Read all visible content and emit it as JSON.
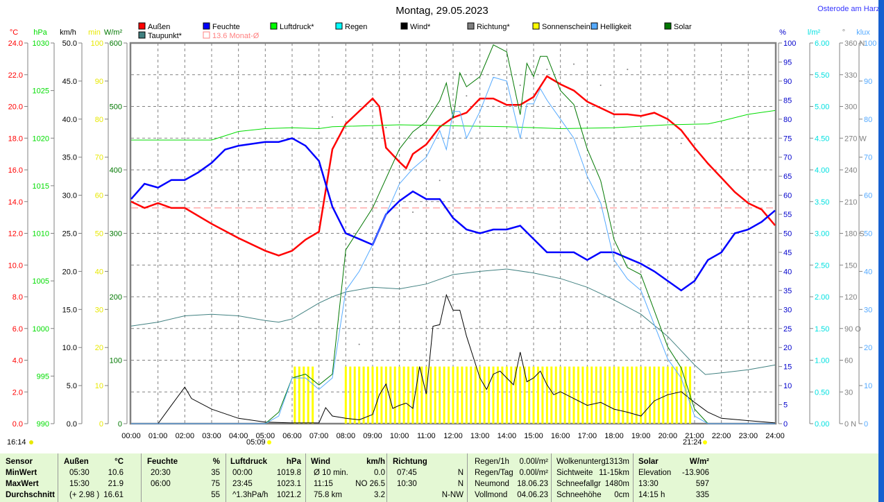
{
  "header": {
    "title": "Montag, 29.05.2023",
    "location": "Osterode am Harz"
  },
  "legend": [
    {
      "label": "Außen",
      "color": "#ff0000"
    },
    {
      "label": "Feuchte",
      "color": "#0000ff"
    },
    {
      "label": "Luftdruck*",
      "color": "#00ff00"
    },
    {
      "label": "Regen",
      "color": "#00ffff"
    },
    {
      "label": "Wind*",
      "color": "#000000"
    },
    {
      "label": "Richtung*",
      "color": "#808080"
    },
    {
      "label": "Sonnenschein",
      "color": "#ffff00"
    },
    {
      "label": "Helligkeit",
      "color": "#55aaff"
    },
    {
      "label": "Solar",
      "color": "#007700"
    },
    {
      "label": "Taupunkt*",
      "color": "#408080"
    },
    {
      "label": "13.6 Monat-Ø",
      "color": "#ff8080"
    }
  ],
  "sun": {
    "info": "16:14",
    "sunrise": "05:09",
    "sunset": "21:24"
  },
  "chart_data": {
    "type": "line",
    "title": "Montag, 29.05.2023",
    "xlabel": "Uhrzeit",
    "xlim": [
      0,
      24
    ],
    "xticks": [
      "00:00",
      "01:00",
      "02:00",
      "03:00",
      "04:00",
      "05:00",
      "06:00",
      "07:00",
      "08:00",
      "09:00",
      "10:00",
      "11:00",
      "12:00",
      "13:00",
      "14:00",
      "15:00",
      "16:00",
      "17:00",
      "18:00",
      "19:00",
      "20:00",
      "21:00",
      "22:00",
      "23:00",
      "24:00"
    ],
    "axes": [
      {
        "unit": "°C",
        "color": "#ff0000",
        "range": [
          0,
          24
        ],
        "ticks": [
          "0.0",
          "2.0",
          "4.0",
          "6.0",
          "8.0",
          "10.0",
          "12.0",
          "14.0",
          "16.0",
          "18.0",
          "20.0",
          "22.0",
          "24.0"
        ]
      },
      {
        "unit": "hPa",
        "color": "#00dd00",
        "range": [
          990,
          1030
        ],
        "ticks": [
          "990",
          "995",
          "1000",
          "1005",
          "1010",
          "1015",
          "1020",
          "1025",
          "1030"
        ]
      },
      {
        "unit": "km/h",
        "color": "#000000",
        "range": [
          0,
          50
        ],
        "ticks": [
          "0.0",
          "5.0",
          "10.0",
          "15.0",
          "20.0",
          "25.0",
          "30.0",
          "35.0",
          "40.0",
          "45.0",
          "50.0"
        ]
      },
      {
        "unit": "min",
        "color": "#e8e800",
        "range": [
          0,
          100
        ],
        "ticks": [
          "0",
          "10",
          "20",
          "30",
          "40",
          "50",
          "60",
          "70",
          "80",
          "90",
          "100"
        ]
      },
      {
        "unit": "W/m²",
        "color": "#007700",
        "range": [
          0,
          600
        ],
        "ticks": [
          "0",
          "100",
          "200",
          "300",
          "400",
          "500",
          "600"
        ]
      },
      {
        "unit": "%",
        "color": "#0000cc",
        "range": [
          0,
          100
        ],
        "ticks": [
          "0",
          "5",
          "10",
          "15",
          "20",
          "25",
          "30",
          "35",
          "40",
          "45",
          "50",
          "55",
          "60",
          "65",
          "70",
          "75",
          "80",
          "85",
          "90",
          "95",
          "100"
        ]
      },
      {
        "unit": "l/m²",
        "color": "#00e0e0",
        "range": [
          0,
          6
        ],
        "ticks": [
          "0.00",
          "0.50",
          "1.00",
          "1.50",
          "2.00",
          "2.50",
          "3.00",
          "3.50",
          "4.00",
          "4.50",
          "5.00",
          "5.50",
          "6.00"
        ]
      },
      {
        "unit": "°",
        "color": "#808080",
        "range": [
          0,
          360
        ],
        "ticks": [
          "0 N",
          "30",
          "60",
          "90 O",
          "120",
          "150",
          "180 S",
          "210",
          "240",
          "270 W",
          "300",
          "330",
          "360 N"
        ]
      },
      {
        "unit": "klux",
        "color": "#55aaff",
        "range": [
          0,
          100
        ],
        "ticks": [
          "0",
          "10",
          "20",
          "30",
          "40",
          "50",
          "60",
          "70",
          "80",
          "90",
          "100"
        ]
      }
    ],
    "series": [
      {
        "name": "Außen",
        "axis": 0,
        "color": "#ff0000",
        "width": 2.5,
        "x": [
          0,
          0.5,
          1,
          1.5,
          2,
          3,
          4,
          5,
          5.5,
          6,
          6.5,
          7,
          7.5,
          8,
          8.5,
          9,
          9.25,
          9.5,
          10,
          10.25,
          10.5,
          11,
          11.5,
          12,
          12.5,
          13,
          13.5,
          14,
          14.5,
          15,
          15.5,
          16,
          16.5,
          17,
          17.5,
          18,
          18.5,
          19,
          19.5,
          20,
          20.5,
          21,
          21.5,
          22,
          22.5,
          23,
          23.5,
          24
        ],
        "y": [
          14.0,
          13.6,
          13.9,
          13.6,
          13.6,
          12.6,
          11.7,
          10.9,
          10.6,
          10.9,
          11.6,
          12.1,
          17.3,
          18.9,
          19.7,
          20.5,
          20.0,
          17.4,
          16.5,
          16.1,
          17.0,
          17.6,
          18.7,
          19.3,
          19.6,
          20.5,
          20.5,
          20.1,
          20.1,
          20.6,
          21.9,
          21.4,
          21.0,
          20.3,
          19.9,
          19.5,
          19.5,
          19.4,
          19.6,
          19.2,
          18.5,
          17.4,
          16.4,
          15.5,
          14.6,
          13.9,
          13.5,
          12.5
        ]
      },
      {
        "name": "Feuchte",
        "axis": 5,
        "color": "#0000ff",
        "width": 2.5,
        "x": [
          0,
          0.5,
          1,
          1.5,
          2,
          2.5,
          3,
          3.5,
          4,
          5,
          5.5,
          6,
          6.5,
          7,
          7.5,
          8,
          8.5,
          9,
          9.5,
          10,
          10.5,
          11,
          11.5,
          12,
          12.5,
          13,
          13.5,
          14,
          14.5,
          15,
          15.5,
          16,
          16.5,
          17,
          17.5,
          18,
          18.5,
          19,
          19.5,
          20,
          20.5,
          21,
          21.5,
          22,
          22.5,
          23,
          23.5,
          24
        ],
        "y": [
          59,
          63,
          62,
          64,
          64,
          66,
          68.5,
          72,
          73,
          74,
          74,
          75,
          73,
          69,
          57,
          50,
          48.5,
          47,
          55,
          58.5,
          61,
          59,
          59,
          54,
          51,
          50,
          51,
          51,
          52,
          48.5,
          45,
          45,
          45,
          43,
          45,
          45,
          43.5,
          42,
          40,
          37.5,
          35,
          37.5,
          43,
          45,
          50,
          51,
          53,
          56
        ]
      },
      {
        "name": "Luftdruck*",
        "axis": 1,
        "color": "#00dd00",
        "width": 1,
        "x": [
          0,
          3,
          4,
          5,
          6,
          7,
          7.5,
          10,
          14,
          16,
          18,
          20,
          21.5,
          22,
          23,
          24
        ],
        "y": [
          1019.8,
          1019.8,
          1020.7,
          1021.0,
          1021.1,
          1021.0,
          1021.2,
          1021.4,
          1021.2,
          1021.0,
          1021.1,
          1021.4,
          1021.5,
          1021.8,
          1022.5,
          1022.9
        ]
      },
      {
        "name": "Taupunkt*",
        "axis": 0,
        "color": "#408080",
        "width": 1,
        "x": [
          0,
          1,
          2,
          3,
          4,
          5,
          5.5,
          6,
          7,
          7.5,
          8,
          9,
          10,
          11,
          12,
          13,
          14,
          15,
          16,
          17,
          18,
          19,
          19.5,
          20,
          20.5,
          21,
          21.4,
          22,
          23,
          24
        ],
        "y": [
          6.15,
          6.4,
          6.8,
          6.9,
          6.8,
          6.5,
          6.4,
          6.6,
          7.6,
          8.0,
          8.3,
          8.6,
          8.5,
          8.8,
          9.4,
          9.6,
          9.75,
          9.5,
          9.15,
          8.6,
          7.8,
          6.9,
          6.2,
          5.5,
          4.6,
          3.7,
          3.1,
          3.2,
          3.4,
          3.7
        ]
      },
      {
        "name": "Wind*",
        "axis": 2,
        "color": "#000000",
        "width": 1,
        "x": [
          0,
          1,
          1.5,
          2,
          2.25,
          3,
          4,
          5,
          6,
          7,
          7.25,
          7.5,
          8,
          8.5,
          9,
          9.25,
          9.5,
          9.75,
          10,
          10.25,
          10.5,
          10.75,
          11,
          11.25,
          11.5,
          11.75,
          12,
          12.25,
          12.5,
          13,
          13.25,
          13.5,
          13.75,
          14,
          14.25,
          14.5,
          14.75,
          15,
          15.25,
          15.5,
          15.75,
          16,
          16.5,
          17,
          17.5,
          18,
          18.5,
          19,
          19.5,
          20,
          20.5,
          21,
          21.5,
          22,
          23,
          24
        ],
        "y": [
          0,
          0,
          2.4,
          4.8,
          3.3,
          1.9,
          0.7,
          0.2,
          0.1,
          0.1,
          2.1,
          1.0,
          0.7,
          0.5,
          1.2,
          3.8,
          5.2,
          2.0,
          2.4,
          2.7,
          2.0,
          7.5,
          3.9,
          12.8,
          13.0,
          16.9,
          14.9,
          14.9,
          11.5,
          6.0,
          4.5,
          6.5,
          6.9,
          6.0,
          5.1,
          9.4,
          5.5,
          6.0,
          6.9,
          5.1,
          3.8,
          4.2,
          3.3,
          2.4,
          2.8,
          1.9,
          1.5,
          1.0,
          3.0,
          3.8,
          4.2,
          2.8,
          1.5,
          0.7,
          0.4,
          0.1
        ]
      },
      {
        "name": "Solar",
        "axis": 4,
        "color": "#007700",
        "width": 1,
        "x": [
          0,
          5,
          5.5,
          6,
          6.5,
          7,
          7.5,
          8,
          8.5,
          9,
          10,
          10.5,
          11,
          11.5,
          11.75,
          12,
          12.25,
          12.5,
          13,
          13.5,
          14,
          14.5,
          14.75,
          15,
          15.25,
          15.5,
          16,
          16.5,
          17,
          17.5,
          18,
          18.5,
          19,
          20,
          20.5,
          21,
          21.5,
          24
        ],
        "y": [
          0,
          0,
          18,
          72,
          78,
          61,
          78,
          274,
          307,
          340,
          433,
          460,
          476,
          509,
          537,
          481,
          553,
          531,
          547,
          597,
          586,
          487,
          568,
          547,
          579,
          579,
          525,
          503,
          433,
          383,
          290,
          246,
          235,
          121,
          88,
          23,
          0,
          0
        ]
      },
      {
        "name": "Helligkeit",
        "axis": 8,
        "color": "#55aaff",
        "width": 1,
        "x": [
          0,
          5,
          5.5,
          6,
          6.5,
          7,
          7.5,
          8,
          8.5,
          9,
          10,
          10.5,
          11,
          11.5,
          11.75,
          12,
          12.25,
          12.5,
          13,
          13.5,
          14,
          14.5,
          14.75,
          15,
          15.25,
          15.5,
          16,
          16.5,
          17,
          17.5,
          18,
          18.5,
          19,
          20,
          20.5,
          21,
          21.5,
          24
        ],
        "y": [
          0,
          0,
          2,
          12,
          12,
          9,
          12,
          35,
          40,
          47,
          63,
          67,
          70,
          77,
          72,
          82,
          82,
          75,
          82,
          91,
          90,
          75,
          84,
          84,
          88,
          85,
          80,
          75,
          65,
          58,
          43,
          38,
          35,
          17,
          12,
          2,
          0,
          0
        ]
      }
    ],
    "sunshine_minutes": {
      "axis": 3,
      "color": "#ffff00",
      "value": 15,
      "ranges": [
        [
          6.1,
          6.9
        ],
        [
          8.0,
          20.9
        ]
      ]
    },
    "richtung_points": {
      "axis": 7,
      "color": "#808080",
      "x": [
        6.5,
        7.5,
        8.5,
        9.5,
        10.5,
        11.5,
        12.5,
        13.5,
        14.5,
        15.5,
        16.5,
        17.5,
        18.5,
        19.5,
        20.5,
        22.2
      ],
      "y": [
        330,
        290,
        75,
        280,
        200,
        230,
        310,
        300,
        320,
        335,
        340,
        320,
        335,
        300,
        265,
        325
      ]
    },
    "reference_line": {
      "label": "13.6 Monat-Ø",
      "axis": 0,
      "value": 13.6,
      "color": "#ff8080"
    }
  },
  "table": {
    "headers": [
      "Sensor",
      "Außen",
      "°C",
      "Feuchte",
      "%",
      "Luftdruck",
      "hPa",
      "Wind",
      "km/h",
      "Richtung"
    ],
    "rows": [
      {
        "label": "MinWert",
        "a_t": "05:30",
        "a_v": "10.6",
        "f_t": "20:30",
        "f_v": "35",
        "l_t": "00:00",
        "l_v": "1019.8",
        "w_t": "Ø 10 min.",
        "w_v": "0.0",
        "r_t": "07:45",
        "r_v": "N"
      },
      {
        "label": "MaxWert",
        "a_t": "15:30",
        "a_v": "21.9",
        "f_t": "06:00",
        "f_v": "75",
        "l_t": "23:45",
        "l_v": "1023.1",
        "w_t": "11:15",
        "w_v": "NO 26.5",
        "r_t": "10:30",
        "r_v": "N"
      },
      {
        "label": "Durchschnitt",
        "a_t": "(+ 2.98 )",
        "a_v": "16.61",
        "f_t": "",
        "f_v": "55",
        "l_t": "^1.3hPa/h",
        "l_v": "1021.2",
        "w_t": "75.8 km",
        "w_v": "3.2",
        "r_t": "",
        "r_v": "N-NW"
      }
    ],
    "extra1": [
      [
        "Regen/1h",
        "0.00l/m²"
      ],
      [
        "Regen/Tag",
        "0.00l/m²"
      ],
      [
        "Neumond",
        "18.06.23"
      ],
      [
        "Vollmond",
        "04.06.23"
      ]
    ],
    "extra2": [
      [
        "Wolkenunterg",
        "1313m"
      ],
      [
        "Sichtweite",
        "11-15km"
      ],
      [
        "Schneefallgr",
        "1480m"
      ],
      [
        "Schneehöhe",
        "0cm"
      ]
    ],
    "solar": {
      "header": "Solar",
      "unit": "W/m²",
      "rows": [
        [
          "Elevation",
          "-13.906"
        ],
        [
          "13:30",
          "597"
        ],
        [
          "14:15 h",
          "335"
        ]
      ]
    }
  }
}
